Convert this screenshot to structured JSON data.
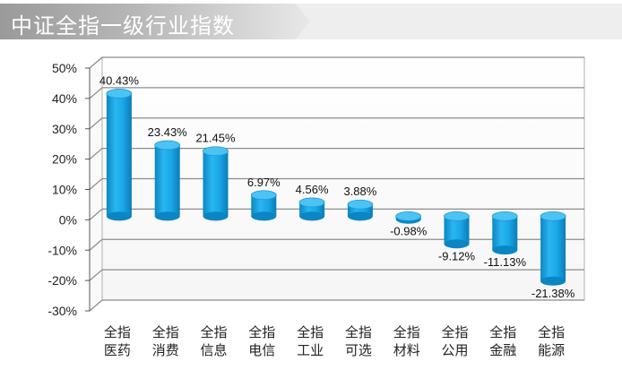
{
  "header": {
    "title": "中证全指一级行业指数"
  },
  "colors": {
    "title_bg": "#9a9a9a",
    "title_bg_light": "#d9d9d9",
    "bar_main": "#1aa7e8",
    "bar_top": "#4cc3f2",
    "bar_dark": "#0b86c2",
    "grid": "#8c8c8c"
  },
  "chart_data": {
    "type": "bar",
    "title": "中证全指一级行业指数",
    "categories": [
      [
        "全指",
        "医药"
      ],
      [
        "全指",
        "消费"
      ],
      [
        "全指",
        "信息"
      ],
      [
        "全指",
        "电信"
      ],
      [
        "全指",
        "工业"
      ],
      [
        "全指",
        "可选"
      ],
      [
        "全指",
        "材料"
      ],
      [
        "全指",
        "公用"
      ],
      [
        "全指",
        "金融"
      ],
      [
        "全指",
        "能源"
      ]
    ],
    "values": [
      40.43,
      23.43,
      21.45,
      6.97,
      4.56,
      3.88,
      -0.98,
      -9.12,
      -11.13,
      -21.38
    ],
    "value_labels": [
      "40.43%",
      "23.43%",
      "21.45%",
      "6.97%",
      "4.56%",
      "3.88%",
      "-0.98%",
      "-9.12%",
      "-11.13%",
      "-21.38%"
    ],
    "ylim": [
      -30,
      50
    ],
    "yticks": [
      50,
      40,
      30,
      20,
      10,
      0,
      -10,
      -20,
      -30
    ],
    "ytick_labels": [
      "50%",
      "40%",
      "30%",
      "20%",
      "10%",
      "0%",
      "-10%",
      "-20%",
      "-30%"
    ],
    "grid": true,
    "xlabel": "",
    "ylabel": ""
  }
}
